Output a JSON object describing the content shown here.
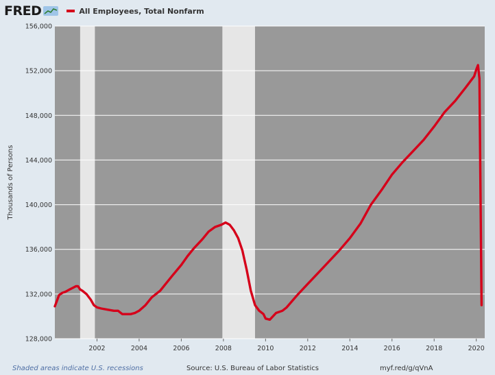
{
  "header": {
    "logo": "FRED",
    "logo_icon": "fred-chart-icon",
    "legend_label": "All Employees, Total Nonfarm",
    "legend_color": "#d5001a"
  },
  "footer": {
    "recession_note": "Shaded areas indicate U.S. recessions",
    "source": "Source: U.S. Bureau of Labor Statistics",
    "link": "myf.red/g/qVnA"
  },
  "chart_data": {
    "type": "line",
    "title": "",
    "xlabel": "",
    "ylabel": "Thousands of Persons",
    "xlim": [
      2000.0,
      2020.4
    ],
    "ylim": [
      128000,
      156000
    ],
    "y_ticks": [
      128000,
      132000,
      136000,
      140000,
      144000,
      148000,
      152000,
      156000
    ],
    "y_tick_labels": [
      "128,000",
      "132,000",
      "136,000",
      "140,000",
      "144,000",
      "148,000",
      "152,000",
      "156,000"
    ],
    "x_ticks": [
      2002,
      2004,
      2006,
      2008,
      2010,
      2012,
      2014,
      2016,
      2018,
      2020
    ],
    "x_tick_labels": [
      "2002",
      "2004",
      "2006",
      "2008",
      "2010",
      "2012",
      "2014",
      "2016",
      "2018",
      "2020"
    ],
    "grid": true,
    "plot_background": "#999999",
    "recession_color": "#e6e6e6",
    "recessions": [
      [
        2001.2,
        2001.9
      ],
      [
        2007.95,
        2009.5
      ]
    ],
    "series": [
      {
        "name": "All Employees, Total Nonfarm",
        "color": "#d5001a",
        "x": [
          2000.0,
          2000.1,
          2000.2,
          2000.35,
          2000.5,
          2000.7,
          2000.9,
          2001.0,
          2001.1,
          2001.2,
          2001.3,
          2001.5,
          2001.7,
          2001.85,
          2002.0,
          2002.2,
          2002.5,
          2002.8,
          2003.0,
          2003.2,
          2003.4,
          2003.6,
          2003.8,
          2004.0,
          2004.3,
          2004.6,
          2005.0,
          2005.3,
          2005.6,
          2006.0,
          2006.3,
          2006.6,
          2007.0,
          2007.3,
          2007.6,
          2007.9,
          2008.1,
          2008.3,
          2008.5,
          2008.7,
          2008.9,
          2009.1,
          2009.3,
          2009.5,
          2009.7,
          2009.9,
          2010.0,
          2010.2,
          2010.5,
          2010.8,
          2011.0,
          2011.5,
          2012.0,
          2012.5,
          2013.0,
          2013.5,
          2014.0,
          2014.5,
          2015.0,
          2015.5,
          2016.0,
          2016.5,
          2017.0,
          2017.5,
          2018.0,
          2018.5,
          2019.0,
          2019.5,
          2019.9,
          2020.0,
          2020.08,
          2020.15,
          2020.25
        ],
        "y": [
          130900,
          131400,
          131900,
          132100,
          132200,
          132400,
          132600,
          132700,
          132700,
          132400,
          132300,
          132000,
          131500,
          131000,
          130800,
          130700,
          130600,
          130500,
          130500,
          130200,
          130200,
          130200,
          130300,
          130500,
          131000,
          131700,
          132300,
          133000,
          133700,
          134600,
          135400,
          136100,
          136900,
          137600,
          138000,
          138200,
          138400,
          138200,
          137700,
          137000,
          135900,
          134200,
          132300,
          131000,
          130500,
          130200,
          129800,
          129700,
          130300,
          130500,
          130800,
          131900,
          132900,
          133900,
          134900,
          135900,
          137000,
          138300,
          140000,
          141300,
          142700,
          143800,
          144800,
          145800,
          147000,
          148300,
          149300,
          150500,
          151500,
          152100,
          152500,
          151300,
          131000
        ]
      }
    ]
  }
}
